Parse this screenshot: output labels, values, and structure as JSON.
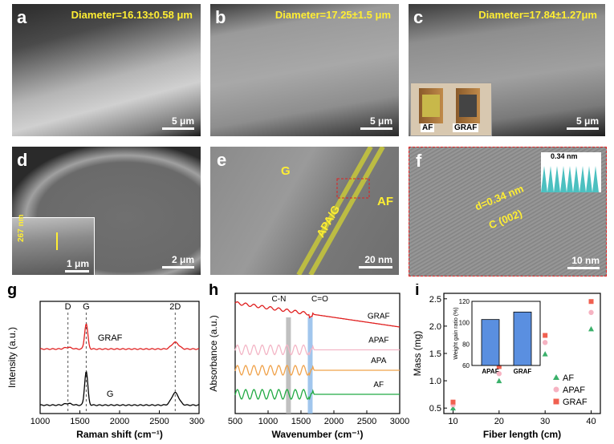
{
  "panels": {
    "a": {
      "letter": "a",
      "diameter": "Diameter=16.13±0.58 μm",
      "scale": "5 μm"
    },
    "b": {
      "letter": "b",
      "diameter": "Diameter=17.25±1.5 μm",
      "scale": "5 μm"
    },
    "c": {
      "letter": "c",
      "diameter": "Diameter=17.84±1.27μm",
      "scale": "5 μm",
      "inset_labels": [
        "AF",
        "GRAF"
      ]
    },
    "d": {
      "letter": "d",
      "scale": "2 μm",
      "inset_scale": "1 μm",
      "inset_measure": "267 nm"
    },
    "e": {
      "letter": "e",
      "labels": [
        "G",
        "APA/G",
        "AF"
      ],
      "scale": "20 nm"
    },
    "f": {
      "letter": "f",
      "d_label": "d=0.34 nm",
      "c_label": "C (002)",
      "scale": "10 nm",
      "inset_label": "0.34 nm"
    }
  },
  "colors": {
    "yellow": "#ffee33",
    "red": "#e02020",
    "pink": "#f3b6c6",
    "orange": "#f0a24a",
    "green": "#22aa44",
    "blue_band": "#8ab8e8",
    "grey_band": "#b0b0b0"
  },
  "chart_data": [
    {
      "type": "line",
      "letter": "g",
      "xlabel": "Raman shift (cm⁻¹)",
      "ylabel": "Intensity (a.u.)",
      "xlim": [
        1000,
        3000
      ],
      "xticks": [
        1000,
        1500,
        2000,
        2500,
        3000
      ],
      "peak_labels": [
        {
          "label": "D",
          "x": 1350
        },
        {
          "label": "G",
          "x": 1580
        },
        {
          "label": "2D",
          "x": 2700
        }
      ],
      "series": [
        {
          "name": "GRAF",
          "color": "#e02020",
          "offset": 1.0,
          "peaks": [
            {
              "x": 1350,
              "h": 0.03
            },
            {
              "x": 1580,
              "h": 0.45
            },
            {
              "x": 2700,
              "h": 0.12
            }
          ]
        },
        {
          "name": "G",
          "color": "#000000",
          "offset": 0.0,
          "peaks": [
            {
              "x": 1350,
              "h": 0.03
            },
            {
              "x": 1580,
              "h": 0.6
            },
            {
              "x": 2700,
              "h": 0.22
            }
          ]
        }
      ]
    },
    {
      "type": "line",
      "letter": "h",
      "xlabel": "Wavenumber (cm⁻¹)",
      "ylabel": "Absorbance (a.u.)",
      "xlim": [
        500,
        3000
      ],
      "xticks": [
        500,
        1000,
        1500,
        2000,
        2500,
        3000
      ],
      "band_labels": [
        {
          "label": "C-N",
          "x": 1310
        },
        {
          "label": "C=O",
          "x": 1640
        }
      ],
      "series": [
        {
          "name": "GRAF",
          "color": "#e02020"
        },
        {
          "name": "APAF",
          "color": "#f3b6c6"
        },
        {
          "name": "APA",
          "color": "#f0a24a"
        },
        {
          "name": "AF",
          "color": "#22aa44"
        }
      ]
    },
    {
      "type": "scatter",
      "letter": "i",
      "xlabel": "Fiber length (cm)",
      "ylabel": "Mass (mg)",
      "xlim": [
        8,
        42
      ],
      "ylim": [
        0.4,
        2.6
      ],
      "xticks": [
        10,
        20,
        30,
        40
      ],
      "yticks": [
        0.5,
        1.0,
        1.5,
        2.0,
        2.5
      ],
      "series": [
        {
          "name": "AF",
          "color": "#3ab06a",
          "marker": "triangle",
          "x": [
            10,
            20,
            30,
            40
          ],
          "y": [
            0.5,
            1.0,
            1.49,
            1.95
          ]
        },
        {
          "name": "APAF",
          "color": "#f6b3c2",
          "marker": "circle",
          "x": [
            10,
            20,
            30,
            40
          ],
          "y": [
            0.56,
            1.13,
            1.7,
            2.25
          ]
        },
        {
          "name": "GRAF",
          "color": "#f06050",
          "marker": "square",
          "x": [
            10,
            20,
            30,
            40
          ],
          "y": [
            0.61,
            1.26,
            1.83,
            2.45
          ]
        }
      ],
      "inset": {
        "type": "bar",
        "ylabel": "Weight gain ratio (%)",
        "categories": [
          "APAF",
          "GRAF"
        ],
        "values": [
          103,
          110
        ],
        "ylim": [
          60,
          120
        ],
        "yticks": [
          60,
          80,
          100,
          120
        ]
      }
    }
  ]
}
